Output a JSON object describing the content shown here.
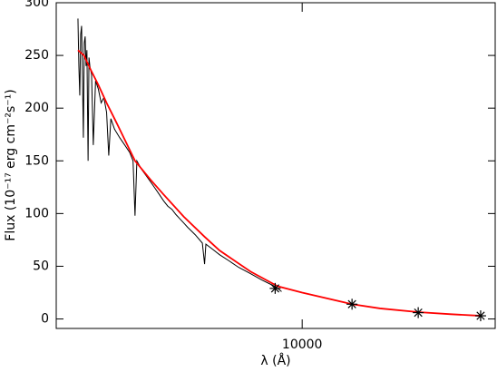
{
  "chart_data": {
    "type": "line",
    "xlabel": "λ (Å)",
    "ylabel": "Flux (10⁻¹⁷ erg cm⁻²s⁻¹)",
    "xscale": "log",
    "xlim": [
      3460,
      23000
    ],
    "ylim": [
      -9,
      300
    ],
    "xticks": [
      10000
    ],
    "yticks": [
      0,
      50,
      100,
      150,
      200,
      250,
      300
    ],
    "series": [
      {
        "type": "line",
        "color": "#000000",
        "x": [
          3800,
          3815,
          3830,
          3845,
          3860,
          3875,
          3890,
          3905,
          3920,
          3935,
          3950,
          3970,
          3985,
          4000,
          4030,
          4060,
          4100,
          4150,
          4200,
          4250,
          4300,
          4340,
          4380,
          4450,
          4550,
          4650,
          4750,
          4820,
          4861,
          4900,
          5000,
          5100,
          5200,
          5300,
          5400,
          5500,
          5600,
          5700,
          5800,
          5900,
          6000,
          6100,
          6300,
          6500,
          6563,
          6600,
          6800,
          7000,
          7300,
          7600,
          8000,
          8400,
          8800,
          9000,
          9150
        ],
        "values": [
          285,
          240,
          212,
          270,
          278,
          230,
          172,
          262,
          268,
          240,
          255,
          150,
          248,
          240,
          232,
          165,
          226,
          218,
          205,
          210,
          196,
          155,
          190,
          180,
          172,
          165,
          158,
          150,
          98,
          150,
          142,
          136,
          130,
          124,
          118,
          112,
          107,
          104,
          99,
          95,
          91,
          87,
          80,
          72,
          52,
          71,
          66,
          61,
          55,
          49,
          43,
          37,
          32,
          29,
          26
        ]
      },
      {
        "type": "line",
        "color": "#ff0000",
        "x": [
          3800,
          3900,
          4000,
          4150,
          4300,
          4500,
          4861,
          5200,
          5500,
          6000,
          6563,
          7000,
          8000,
          9000,
          10000,
          12400,
          14000,
          16500,
          19000,
          21600
        ],
        "values": [
          255,
          250,
          238,
          222,
          205,
          185,
          150,
          132,
          118,
          97,
          78,
          65,
          45,
          31,
          25,
          14,
          10,
          6.5,
          4.5,
          3
        ]
      },
      {
        "type": "scatter",
        "color": "#000000",
        "x": [
          8900,
          12400,
          16500,
          21600
        ],
        "values": [
          29,
          14,
          6,
          3
        ]
      }
    ]
  }
}
